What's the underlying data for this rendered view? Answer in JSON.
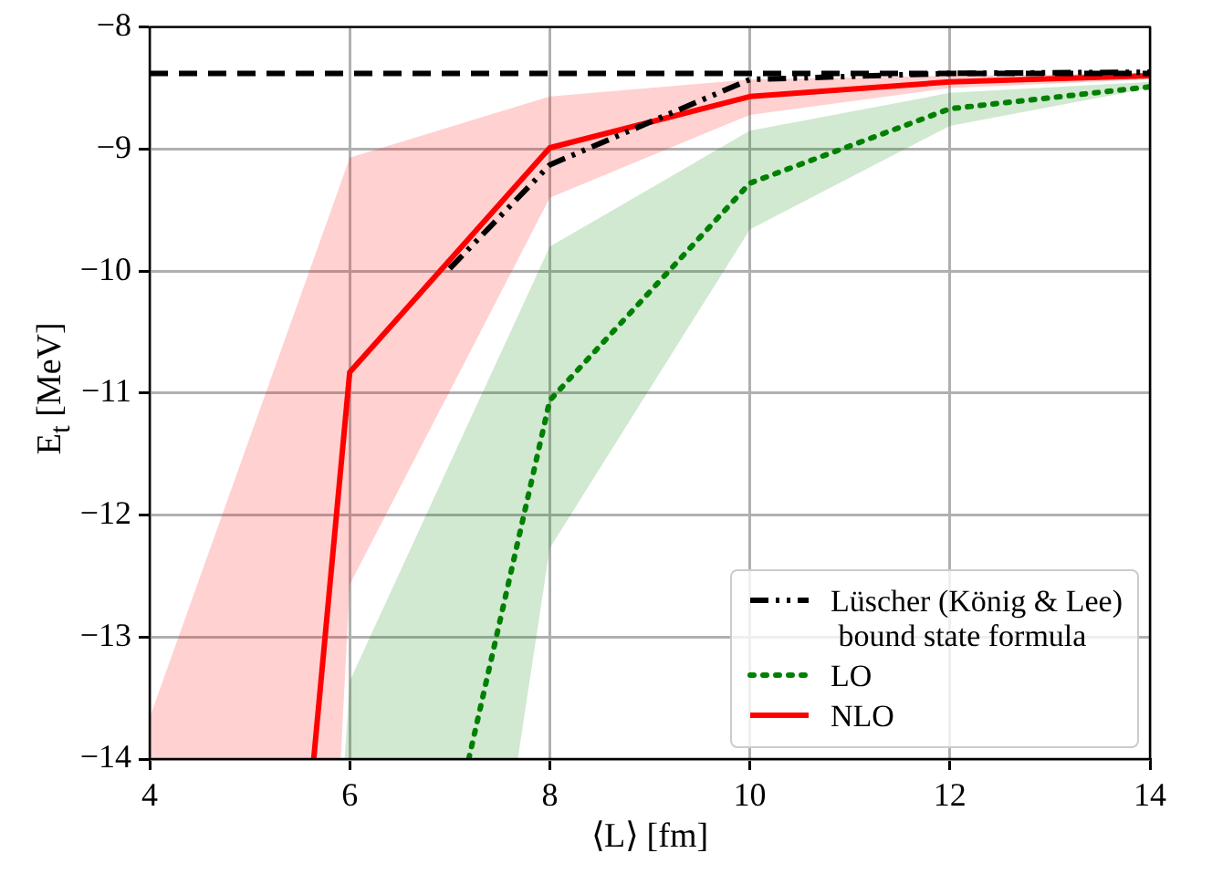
{
  "chart_data": {
    "type": "line",
    "xlabel": "⟨L⟩ [fm]",
    "ylabel": "E$_{t}$ [MeV]",
    "xlim": [
      4,
      14
    ],
    "ylim": [
      -14,
      -8
    ],
    "xticks": [
      4,
      6,
      8,
      10,
      12,
      14
    ],
    "yticks": [
      -14,
      -13,
      -12,
      -11,
      -10,
      -9,
      -8
    ],
    "grid": true,
    "legend": "bottom right",
    "marker": "none",
    "ref_lines": [
      {
        "axis": "y",
        "value": -8.38,
        "color": "#000000",
        "line_style": "dashed"
      }
    ],
    "series": [
      {
        "name": "Lüscher (König & Lee)\n bound state formula",
        "color": "#000000",
        "line_style": "dashdot",
        "x": [
          7,
          8,
          10,
          12,
          14
        ],
        "values": [
          -9.98,
          -9.13,
          -8.43,
          -8.38,
          -8.37
        ]
      },
      {
        "name": "LO",
        "color": "#008000",
        "line_style": "dotted",
        "x": [
          5.95,
          6,
          7.19,
          7.68,
          8,
          10,
          12,
          14
        ],
        "values": [
          null,
          null,
          -14,
          null,
          -11.06,
          -9.28,
          -8.67,
          -8.49
        ],
        "lower": [
          -14,
          -14,
          -14,
          -14,
          -12.27,
          -9.66,
          -8.81,
          -8.5
        ],
        "upper": [
          -14,
          -13.36,
          -11.24,
          -10.37,
          -9.8,
          -8.85,
          -8.54,
          -8.45
        ]
      },
      {
        "name": "NLO",
        "color": "#ff0000",
        "line_style": "solid",
        "x": [
          4,
          5.64,
          5.91,
          6,
          8,
          10,
          12,
          14
        ],
        "values": [
          null,
          -14,
          null,
          -10.83,
          -8.99,
          -8.57,
          -8.45,
          -8.4
        ],
        "lower": [
          -14,
          -14,
          -14,
          -12.57,
          -9.4,
          -8.72,
          -8.5,
          -8.43
        ],
        "upper": [
          -13.66,
          -9.9,
          -9.28,
          -9.07,
          -8.57,
          -8.43,
          -8.4,
          -8.38
        ]
      }
    ]
  }
}
